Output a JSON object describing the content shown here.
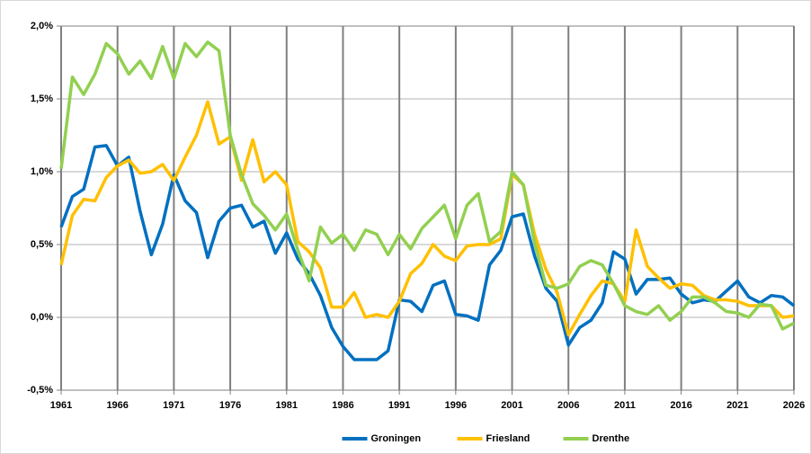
{
  "chart_data": {
    "type": "line",
    "x": [
      1961,
      1962,
      1963,
      1964,
      1965,
      1966,
      1967,
      1968,
      1969,
      1970,
      1971,
      1972,
      1973,
      1974,
      1975,
      1976,
      1977,
      1978,
      1979,
      1980,
      1981,
      1982,
      1983,
      1984,
      1985,
      1986,
      1987,
      1988,
      1989,
      1990,
      1991,
      1992,
      1993,
      1994,
      1995,
      1996,
      1997,
      1998,
      1999,
      2000,
      2001,
      2002,
      2003,
      2004,
      2005,
      2006,
      2007,
      2008,
      2009,
      2010,
      2011,
      2012,
      2013,
      2014,
      2015,
      2016,
      2017,
      2018,
      2019,
      2020,
      2021,
      2022,
      2023,
      2024,
      2025,
      2026
    ],
    "xlim": [
      1961,
      2026
    ],
    "xticks": [
      1961,
      1966,
      1971,
      1976,
      1981,
      1986,
      1991,
      1996,
      2001,
      2006,
      2011,
      2016,
      2021,
      2026
    ],
    "ylim": [
      -0.5,
      2.0
    ],
    "yticks": [
      {
        "value": -0.5,
        "label": "-0,5%"
      },
      {
        "value": 0.0,
        "label": "0,0%"
      },
      {
        "value": 0.5,
        "label": "0,5%"
      },
      {
        "value": 1.0,
        "label": "1,0%"
      },
      {
        "value": 1.5,
        "label": "1,5%"
      },
      {
        "value": 2.0,
        "label": "2,0%"
      }
    ],
    "grid": true,
    "legend": "bottom",
    "series": [
      {
        "name": "Groningen",
        "color": "#0070c0",
        "values": [
          0.62,
          0.83,
          0.88,
          1.17,
          1.18,
          1.04,
          1.1,
          0.73,
          0.43,
          0.64,
          0.98,
          0.8,
          0.72,
          0.41,
          0.66,
          0.75,
          0.77,
          0.62,
          0.66,
          0.44,
          0.58,
          0.4,
          0.3,
          0.15,
          -0.07,
          -0.2,
          -0.29,
          -0.29,
          -0.29,
          -0.23,
          0.12,
          0.11,
          0.04,
          0.22,
          0.25,
          0.02,
          0.01,
          -0.02,
          0.36,
          0.46,
          0.69,
          0.71,
          0.42,
          0.2,
          0.11,
          -0.19,
          -0.07,
          -0.02,
          0.1,
          0.45,
          0.4,
          0.16,
          0.26,
          0.26,
          0.27,
          0.16,
          0.1,
          0.12,
          0.11,
          0.18,
          0.25,
          0.14,
          0.1,
          0.15,
          0.14,
          0.08
        ]
      },
      {
        "name": "Friesland",
        "color": "#ffc000",
        "values": [
          0.36,
          0.7,
          0.81,
          0.8,
          0.96,
          1.04,
          1.08,
          0.99,
          1.0,
          1.05,
          0.94,
          1.1,
          1.25,
          1.48,
          1.19,
          1.24,
          0.94,
          1.22,
          0.93,
          1.0,
          0.91,
          0.52,
          0.45,
          0.34,
          0.07,
          0.07,
          0.17,
          0.0,
          0.02,
          0.0,
          0.11,
          0.3,
          0.37,
          0.5,
          0.42,
          0.39,
          0.49,
          0.5,
          0.5,
          0.54,
          0.98,
          0.91,
          0.57,
          0.33,
          0.17,
          -0.12,
          0.02,
          0.15,
          0.25,
          0.23,
          0.11,
          0.6,
          0.35,
          0.27,
          0.2,
          0.23,
          0.22,
          0.15,
          0.12,
          0.12,
          0.11,
          0.08,
          0.08,
          0.08,
          0.0,
          0.01
        ]
      },
      {
        "name": "Drenthe",
        "color": "#92d050",
        "values": [
          1.02,
          1.65,
          1.53,
          1.67,
          1.88,
          1.81,
          1.67,
          1.76,
          1.64,
          1.86,
          1.64,
          1.88,
          1.79,
          1.89,
          1.83,
          1.25,
          0.98,
          0.78,
          0.7,
          0.6,
          0.71,
          0.46,
          0.25,
          0.62,
          0.51,
          0.57,
          0.46,
          0.6,
          0.57,
          0.43,
          0.57,
          0.47,
          0.61,
          0.69,
          0.77,
          0.54,
          0.77,
          0.85,
          0.52,
          0.59,
          1.0,
          0.91,
          0.51,
          0.22,
          0.2,
          0.23,
          0.35,
          0.39,
          0.36,
          0.23,
          0.08,
          0.04,
          0.02,
          0.08,
          -0.02,
          0.04,
          0.14,
          0.14,
          0.1,
          0.04,
          0.03,
          0.0,
          0.09,
          0.08,
          -0.08,
          -0.04
        ]
      }
    ]
  }
}
